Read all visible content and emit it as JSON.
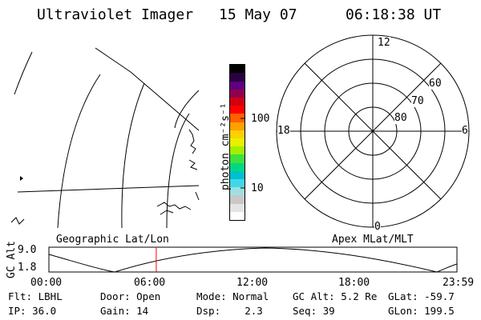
{
  "header": {
    "instrument": "Ultraviolet Imager",
    "date": "15 May 07",
    "time": "06:18:38 UT"
  },
  "colorbar": {
    "label": "photon cm⁻²s⁻¹",
    "ticks": [
      "100",
      "10"
    ],
    "colors": [
      "#ffffff",
      "#e4e4e4",
      "#c8c8c8",
      "#9ee0e0",
      "#40d8e8",
      "#00c0d0",
      "#00d880",
      "#40e040",
      "#a0f000",
      "#e8f000",
      "#ffd000",
      "#ffa000",
      "#ff6000",
      "#ff0000",
      "#d00010",
      "#900050",
      "#600080",
      "#2a0040",
      "#000000"
    ]
  },
  "polar": {
    "mlt_labels": {
      "top": "12",
      "bottom": "0",
      "left": "18",
      "right": "6"
    },
    "lat_labels": [
      "60",
      "70",
      "80"
    ]
  },
  "labels": {
    "left_panel": "Geographic Lat/Lon",
    "right_panel": "Apex MLat/MLT"
  },
  "altplot": {
    "ylabel": "GC Alt",
    "ymax": "9.0",
    "ymin": "1.8",
    "xticks": [
      "00:00",
      "06:00",
      "12:00",
      "18:00",
      "23:59"
    ],
    "current_time_hours": 6.31,
    "line_color": "#ff0000"
  },
  "info": {
    "row1": {
      "flt": "Flt: LBHL",
      "door": "Door: Open",
      "mode": "Mode: Normal",
      "gcalt": "GC Alt: 5.2 Re",
      "glat": "GLat: -59.7"
    },
    "row2": {
      "ip": "IP: 36.0",
      "gain": "Gain: 14",
      "dsp": "Dsp:    2.3",
      "seq": "Seq: 39",
      "glon": "GLon: 199.5"
    }
  }
}
